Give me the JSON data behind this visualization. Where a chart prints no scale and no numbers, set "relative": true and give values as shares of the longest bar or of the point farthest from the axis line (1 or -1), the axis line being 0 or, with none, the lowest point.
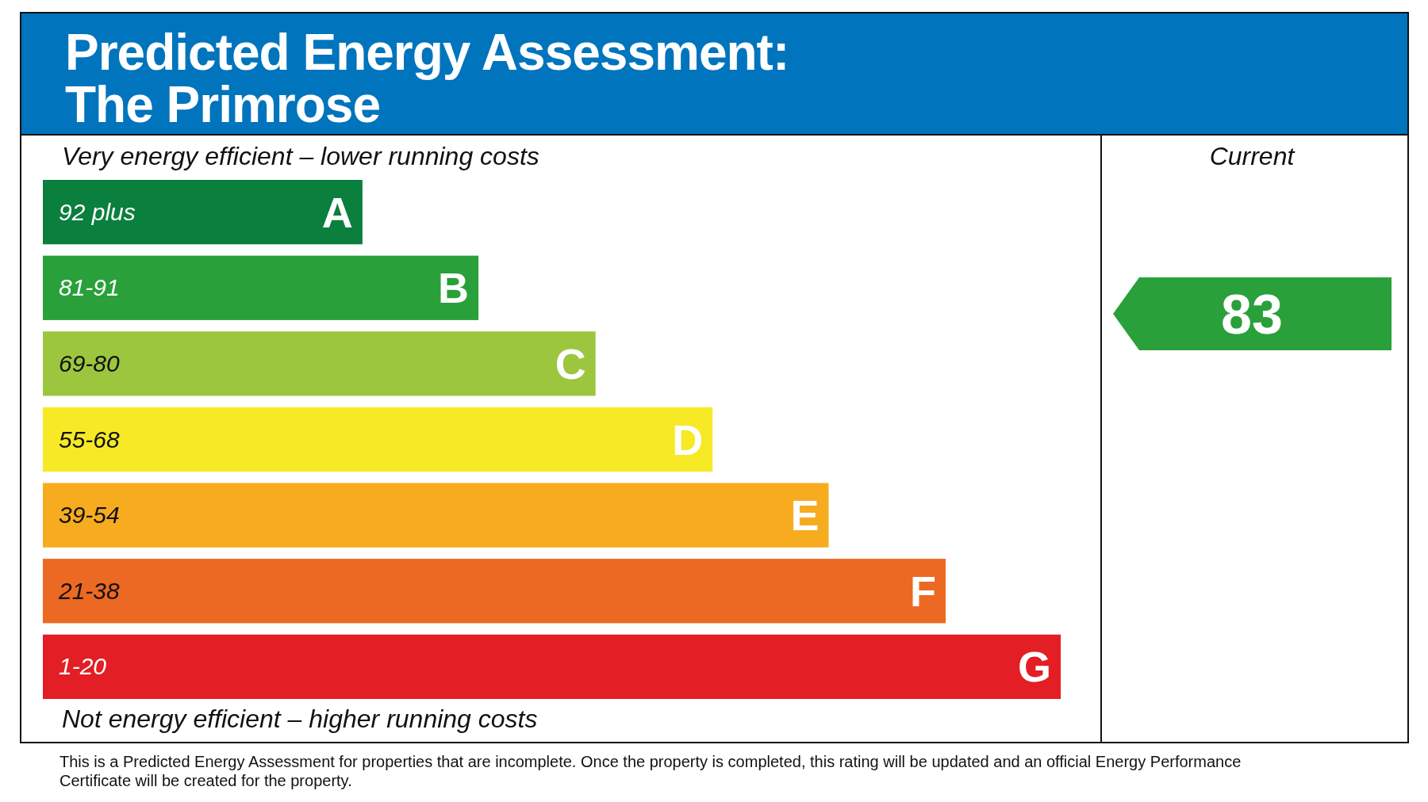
{
  "chart_data": {
    "type": "bar",
    "orientation": "horizontal",
    "relative": true,
    "title": "Predicted Energy Assessment:\nThe Primrose",
    "categories": [
      "92 plus",
      "81-91",
      "69-80",
      "55-68",
      "39-54",
      "21-38",
      "1-20"
    ],
    "values": [
      0.314,
      0.428,
      0.543,
      0.658,
      0.772,
      0.887,
      1.0
    ],
    "colors": [
      "#0b7f3e",
      "#2aa03a",
      "#9cc63e",
      "#f7e925",
      "#f7ac1f",
      "#ec6924",
      "#e31e25"
    ],
    "annotations": [
      "Very energy efficient – lower running costs",
      "Not energy efficient – higher running costs",
      "Current",
      "83",
      "This is a Predicted Energy Assessment for properties that are incomplete. Once the property is completed, this rating will be updated and an official Energy Performance Certificate will be created for the property.",
      {
        "text": "A",
        "x": 0.314,
        "y": "92 plus"
      },
      {
        "text": "B",
        "x": 0.428,
        "y": "81-91"
      },
      {
        "text": "C",
        "x": 0.543,
        "y": "69-80"
      },
      {
        "text": "D",
        "x": 0.658,
        "y": "55-68"
      },
      {
        "text": "E",
        "x": 0.772,
        "y": "39-54"
      },
      {
        "text": "F",
        "x": 0.887,
        "y": "21-38"
      },
      {
        "text": "G",
        "x": 1.0,
        "y": "1-20"
      }
    ]
  }
}
